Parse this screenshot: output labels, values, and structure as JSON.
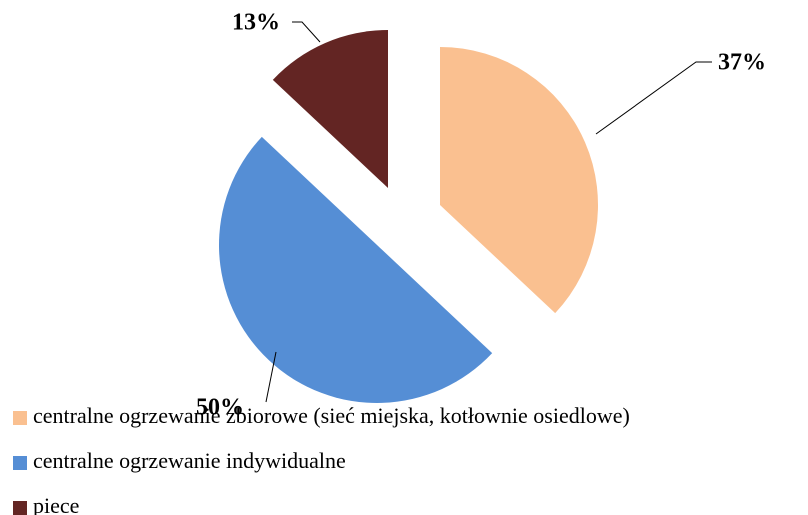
{
  "chart_data": {
    "type": "pie",
    "categories": [
      "centralne ogrzewanie zbiorowe (sieć miejska, kotłownie osiedlowe)",
      "centralne ogrzewanie indywidualne",
      "piece"
    ],
    "values": [
      37,
      50,
      13
    ],
    "value_labels": [
      "37%",
      "50%",
      "13%"
    ],
    "colors": [
      "#FAC090",
      "#558ED5",
      "#632523"
    ],
    "legend": "bottom"
  }
}
